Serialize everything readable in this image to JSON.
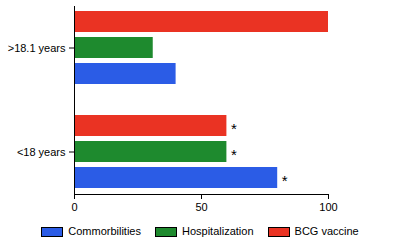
{
  "chart_data": {
    "type": "bar",
    "orientation": "horizontal",
    "categories": [
      ">18.1 years",
      "<18 years"
    ],
    "series": [
      {
        "name": "Commorbilities",
        "color": "#2b5ce6",
        "values": [
          40,
          80
        ]
      },
      {
        "name": "Hospitalization",
        "color": "#1e8a2e",
        "values": [
          31,
          60
        ]
      },
      {
        "name": "BCG vaccine",
        "color": "#ea3323",
        "values": [
          100,
          60
        ]
      }
    ],
    "xlim": [
      0,
      100
    ],
    "xticks": [
      0,
      50,
      100
    ],
    "grid": false,
    "legend": "bottom",
    "annotations": [
      {
        "category": "<18 years",
        "series": "BCG vaccine",
        "text": "*"
      },
      {
        "category": "<18 years",
        "series": "Hospitalization",
        "text": "*"
      },
      {
        "category": "<18 years",
        "series": "Commorbilities",
        "text": "*"
      }
    ]
  }
}
